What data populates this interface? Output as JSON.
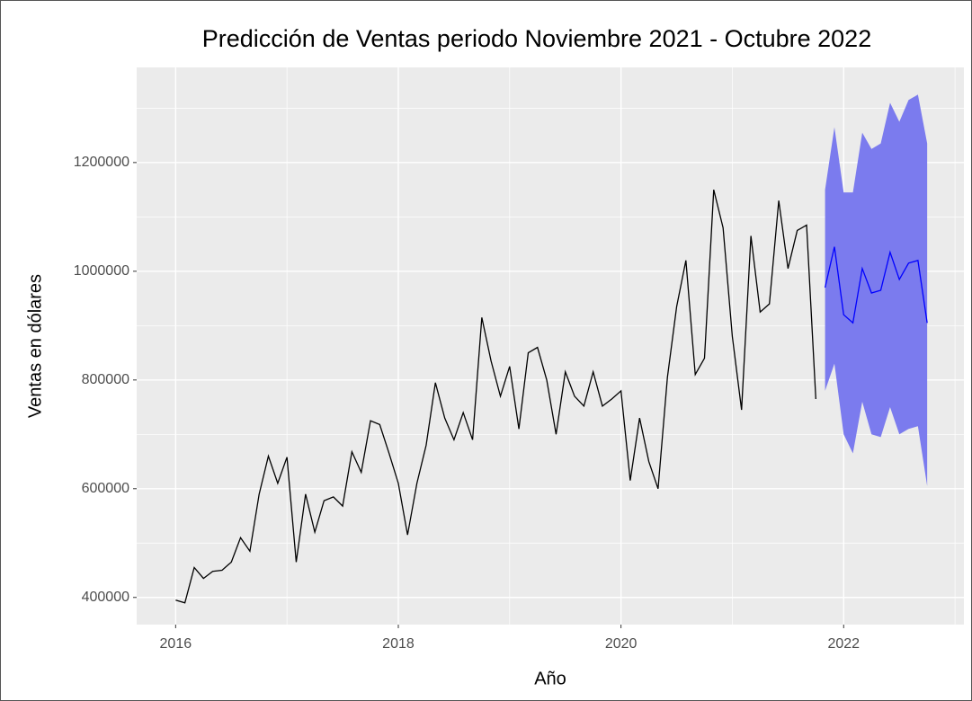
{
  "chart_data": {
    "type": "line",
    "title": "Predicción de Ventas periodo Noviembre 2021 - Octubre 2022",
    "x_label": "Año",
    "y_label": "Ventas en dólares",
    "xlim": [
      2015.65,
      2023.08
    ],
    "ylim": [
      350000,
      1375000
    ],
    "xticks": [
      2016,
      2018,
      2020,
      2022
    ],
    "yticks": [
      400000,
      600000,
      800000,
      1000000,
      1200000
    ],
    "grid": true,
    "series": [
      {
        "color": "#000000",
        "x": [
          2016,
          2016.083,
          2016.167,
          2016.25,
          2016.333,
          2016.417,
          2016.5,
          2016.583,
          2016.667,
          2016.75,
          2016.833,
          2016.917,
          2017,
          2017.083,
          2017.167,
          2017.25,
          2017.333,
          2017.417,
          2017.5,
          2017.583,
          2017.667,
          2017.75,
          2017.833,
          2017.917,
          2018,
          2018.083,
          2018.167,
          2018.25,
          2018.333,
          2018.417,
          2018.5,
          2018.583,
          2018.667,
          2018.75,
          2018.833,
          2018.917,
          2019,
          2019.083,
          2019.167,
          2019.25,
          2019.333,
          2019.417,
          2019.5,
          2019.583,
          2019.667,
          2019.75,
          2019.833,
          2019.917,
          2020,
          2020.083,
          2020.167,
          2020.25,
          2020.333,
          2020.417,
          2020.5,
          2020.583,
          2020.667,
          2020.75,
          2020.833,
          2020.917,
          2021,
          2021.083,
          2021.167,
          2021.25,
          2021.333,
          2021.417,
          2021.5,
          2021.583,
          2021.667,
          2021.75
        ],
        "values": [
          395000,
          390000,
          455000,
          435000,
          448000,
          450000,
          465000,
          510000,
          485000,
          590000,
          660000,
          610000,
          658000,
          465000,
          590000,
          520000,
          578000,
          585000,
          568000,
          668000,
          630000,
          725000,
          718000,
          665000,
          610000,
          515000,
          610000,
          680000,
          795000,
          730000,
          690000,
          740000,
          690000,
          915000,
          835000,
          770000,
          825000,
          710000,
          850000,
          860000,
          800000,
          700000,
          815000,
          770000,
          752000,
          815000,
          752000,
          765000,
          780000,
          615000,
          730000,
          650000,
          600000,
          805000,
          935000,
          1020000,
          810000,
          840000,
          1150000,
          1080000,
          880000,
          745000,
          1065000,
          925000,
          940000,
          1130000,
          1005000,
          1075000,
          1085000,
          765000
        ]
      },
      {
        "color": "#0000ff",
        "band_color": "#7b7bee",
        "x": [
          2021.833,
          2021.917,
          2022,
          2022.083,
          2022.167,
          2022.25,
          2022.333,
          2022.417,
          2022.5,
          2022.583,
          2022.667,
          2022.75
        ],
        "values": [
          970000,
          1045000,
          920000,
          905000,
          1005000,
          960000,
          965000,
          1035000,
          985000,
          1015000,
          1020000,
          905000
        ],
        "upper": [
          1150000,
          1265000,
          1145000,
          1145000,
          1255000,
          1225000,
          1235000,
          1310000,
          1275000,
          1315000,
          1325000,
          1235000
        ],
        "lower": [
          780000,
          830000,
          700000,
          665000,
          760000,
          700000,
          695000,
          750000,
          700000,
          710000,
          715000,
          605000
        ]
      }
    ]
  }
}
